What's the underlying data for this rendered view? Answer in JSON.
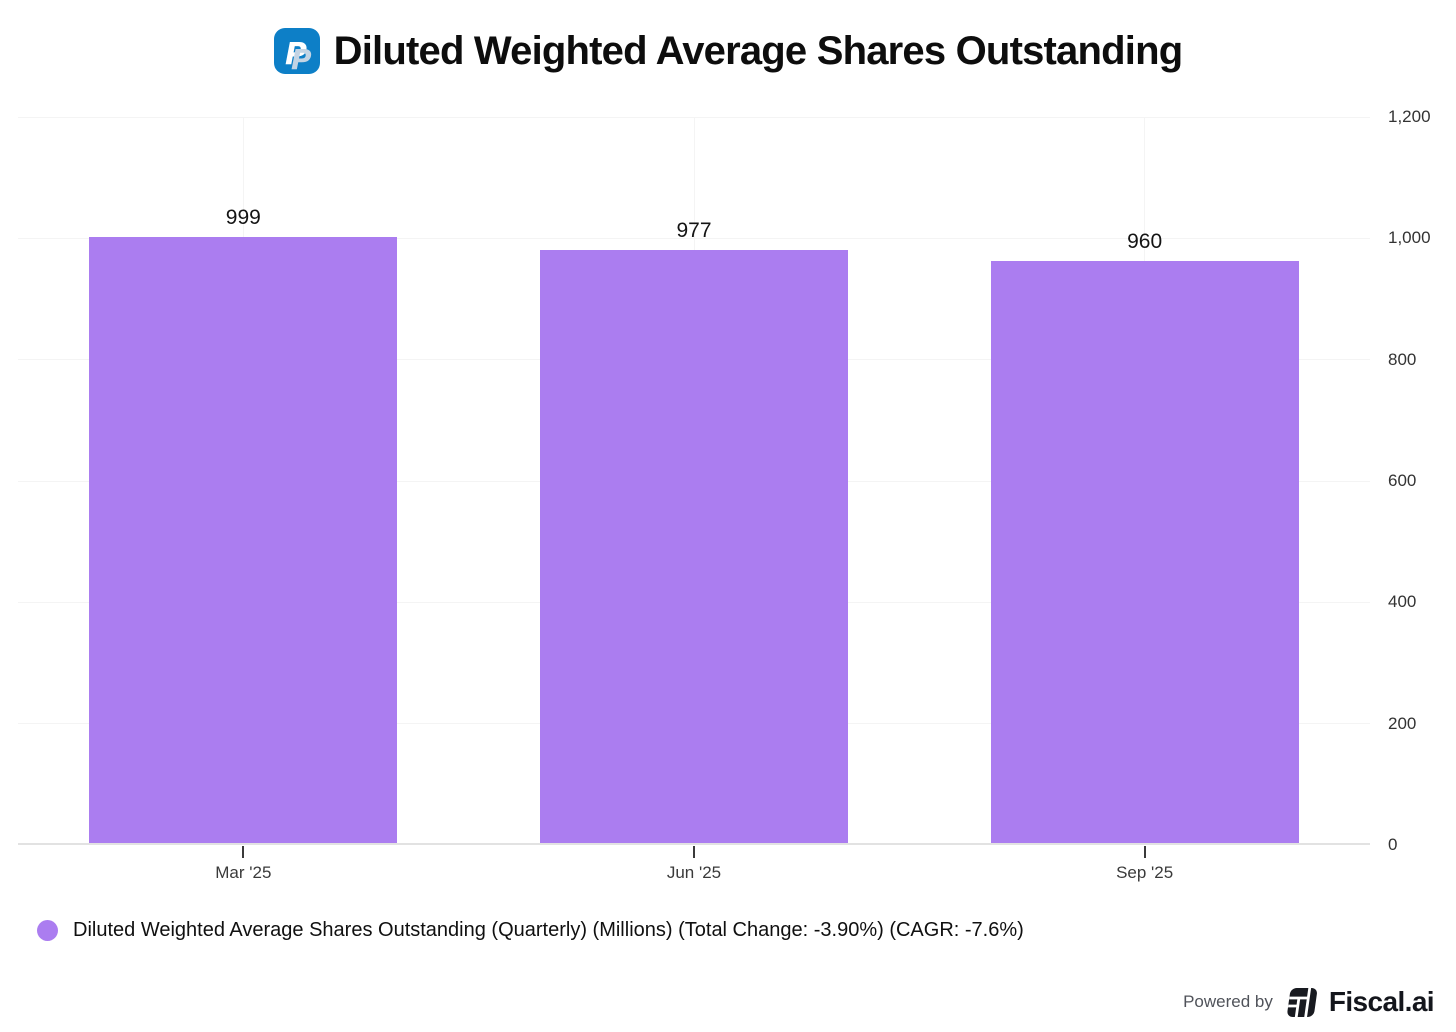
{
  "header": {
    "title": "Diluted Weighted Average Shares Outstanding",
    "logo": "paypal"
  },
  "chart_data": {
    "type": "bar",
    "title": "Diluted Weighted Average Shares Outstanding",
    "categories": [
      "Mar '25",
      "Jun '25",
      "Sep '25"
    ],
    "values": [
      999,
      977,
      960
    ],
    "series_name": "Diluted Weighted Average Shares Outstanding (Quarterly) (Millions)",
    "total_change": "-3.90%",
    "cagr": "-7.6%",
    "xlabel": "",
    "ylabel": "",
    "ylim": [
      0,
      1200
    ],
    "yticks": [
      0,
      200,
      400,
      600,
      800,
      1000,
      1200
    ],
    "y_axis_side": "right",
    "grid": true,
    "bar_color": "#AB7DF0",
    "legend_position": "bottom-left"
  },
  "legend": {
    "label": "Diluted Weighted Average Shares Outstanding (Quarterly) (Millions) (Total Change: -3.90%) (CAGR: -7.6%)",
    "marker_color": "#AB7DF0"
  },
  "footer": {
    "powered_by": "Powered by",
    "brand": "Fiscal.ai"
  }
}
